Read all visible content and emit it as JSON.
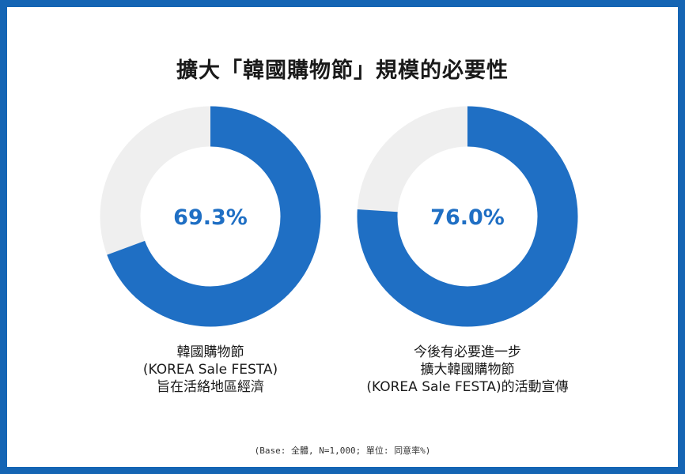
{
  "title": "擴大「韓國購物節」規模的必要性",
  "colors": {
    "frame": "#1565b4",
    "accent": "#1f6fc4",
    "track": "#efefef",
    "percent_text": "#1f6fc4"
  },
  "chart_data": [
    {
      "type": "pie",
      "subtype": "donut",
      "value": 69.3,
      "label": "69.3%",
      "caption_lines": [
        "韓國購物節",
        "(KOREA Sale FESTA)",
        "旨在活絡地區經濟"
      ]
    },
    {
      "type": "pie",
      "subtype": "donut",
      "value": 76.0,
      "label": "76.0%",
      "caption_lines": [
        "今後有必要進一步",
        "擴大韓國購物節",
        "(KOREA Sale FESTA)的活動宣傳"
      ]
    }
  ],
  "footnote": "(Base: 全體, N=1,000; 單位: 同意率%)"
}
